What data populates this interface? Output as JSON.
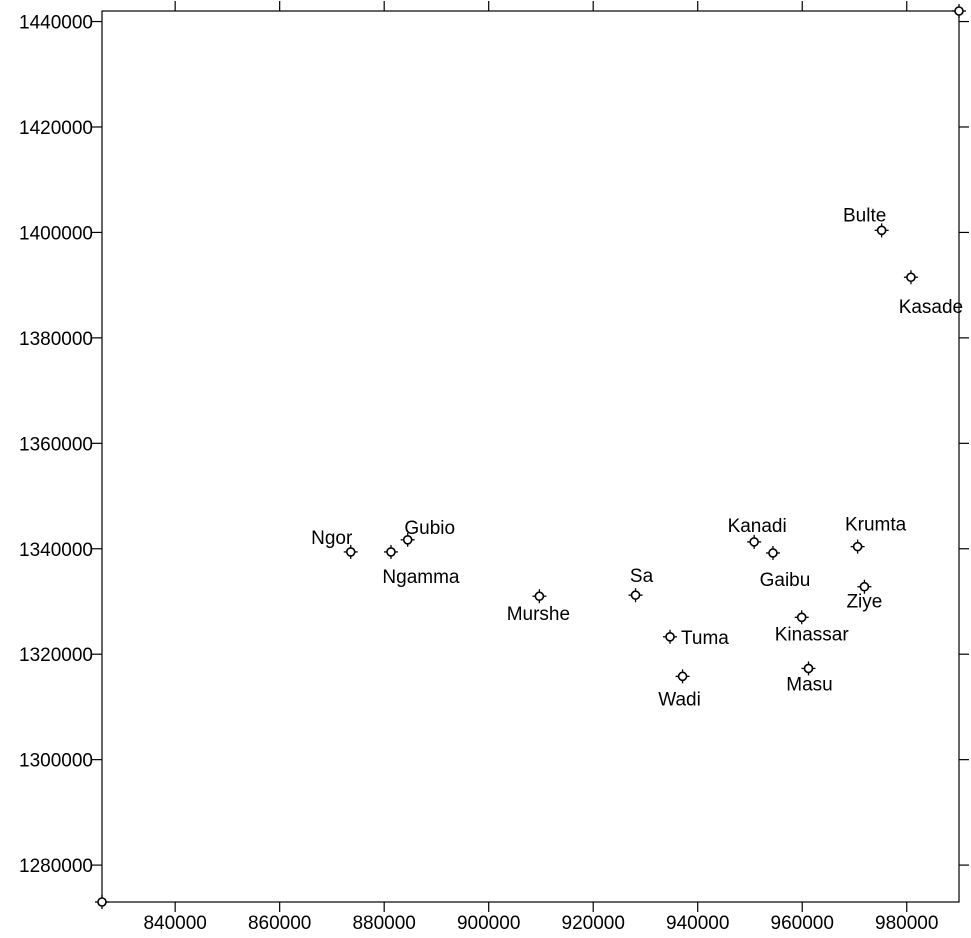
{
  "chart_data": {
    "type": "scatter",
    "title": "",
    "xlabel": "",
    "ylabel": "",
    "xlim": [
      826000,
      990000
    ],
    "ylim": [
      1273000,
      1442000
    ],
    "grid": false,
    "x_ticks": [
      840000,
      860000,
      880000,
      900000,
      920000,
      940000,
      960000,
      980000
    ],
    "y_ticks": [
      1280000,
      1300000,
      1320000,
      1340000,
      1360000,
      1380000,
      1400000,
      1420000,
      1440000
    ],
    "x_tick_labels": [
      "840000",
      "860000",
      "880000",
      "900000",
      "920000",
      "940000",
      "960000",
      "980000"
    ],
    "y_tick_labels": [
      "1280000",
      "1300000",
      "1320000",
      "1340000",
      "1360000",
      "1380000",
      "1400000",
      "1420000",
      "1440000"
    ],
    "points": [
      {
        "label": "Ngor",
        "x": 873600,
        "y": 1339400
      },
      {
        "label": "Ngamma",
        "x": 881300,
        "y": 1339400
      },
      {
        "label": "Gubio",
        "x": 884500,
        "y": 1341700
      },
      {
        "label": "Murshe",
        "x": 909700,
        "y": 1331000
      },
      {
        "label": "Sa",
        "x": 928100,
        "y": 1331200
      },
      {
        "label": "Tuma",
        "x": 934700,
        "y": 1323300
      },
      {
        "label": "Wadi",
        "x": 937100,
        "y": 1315800
      },
      {
        "label": "Kanadi",
        "x": 950800,
        "y": 1341300
      },
      {
        "label": "Gaibu",
        "x": 954400,
        "y": 1339200
      },
      {
        "label": "Kinassar",
        "x": 959900,
        "y": 1327000
      },
      {
        "label": "Masu",
        "x": 961200,
        "y": 1317300
      },
      {
        "label": "Krumta",
        "x": 970600,
        "y": 1340400
      },
      {
        "label": "Ziye",
        "x": 971900,
        "y": 1332800
      },
      {
        "label": "Bulte",
        "x": 975200,
        "y": 1400400
      },
      {
        "label": "Kasade",
        "x": 980800,
        "y": 1391500
      },
      {
        "label": "",
        "x": 826000,
        "y": 1273000
      },
      {
        "label": "",
        "x": 990000,
        "y": 1442000
      }
    ]
  }
}
